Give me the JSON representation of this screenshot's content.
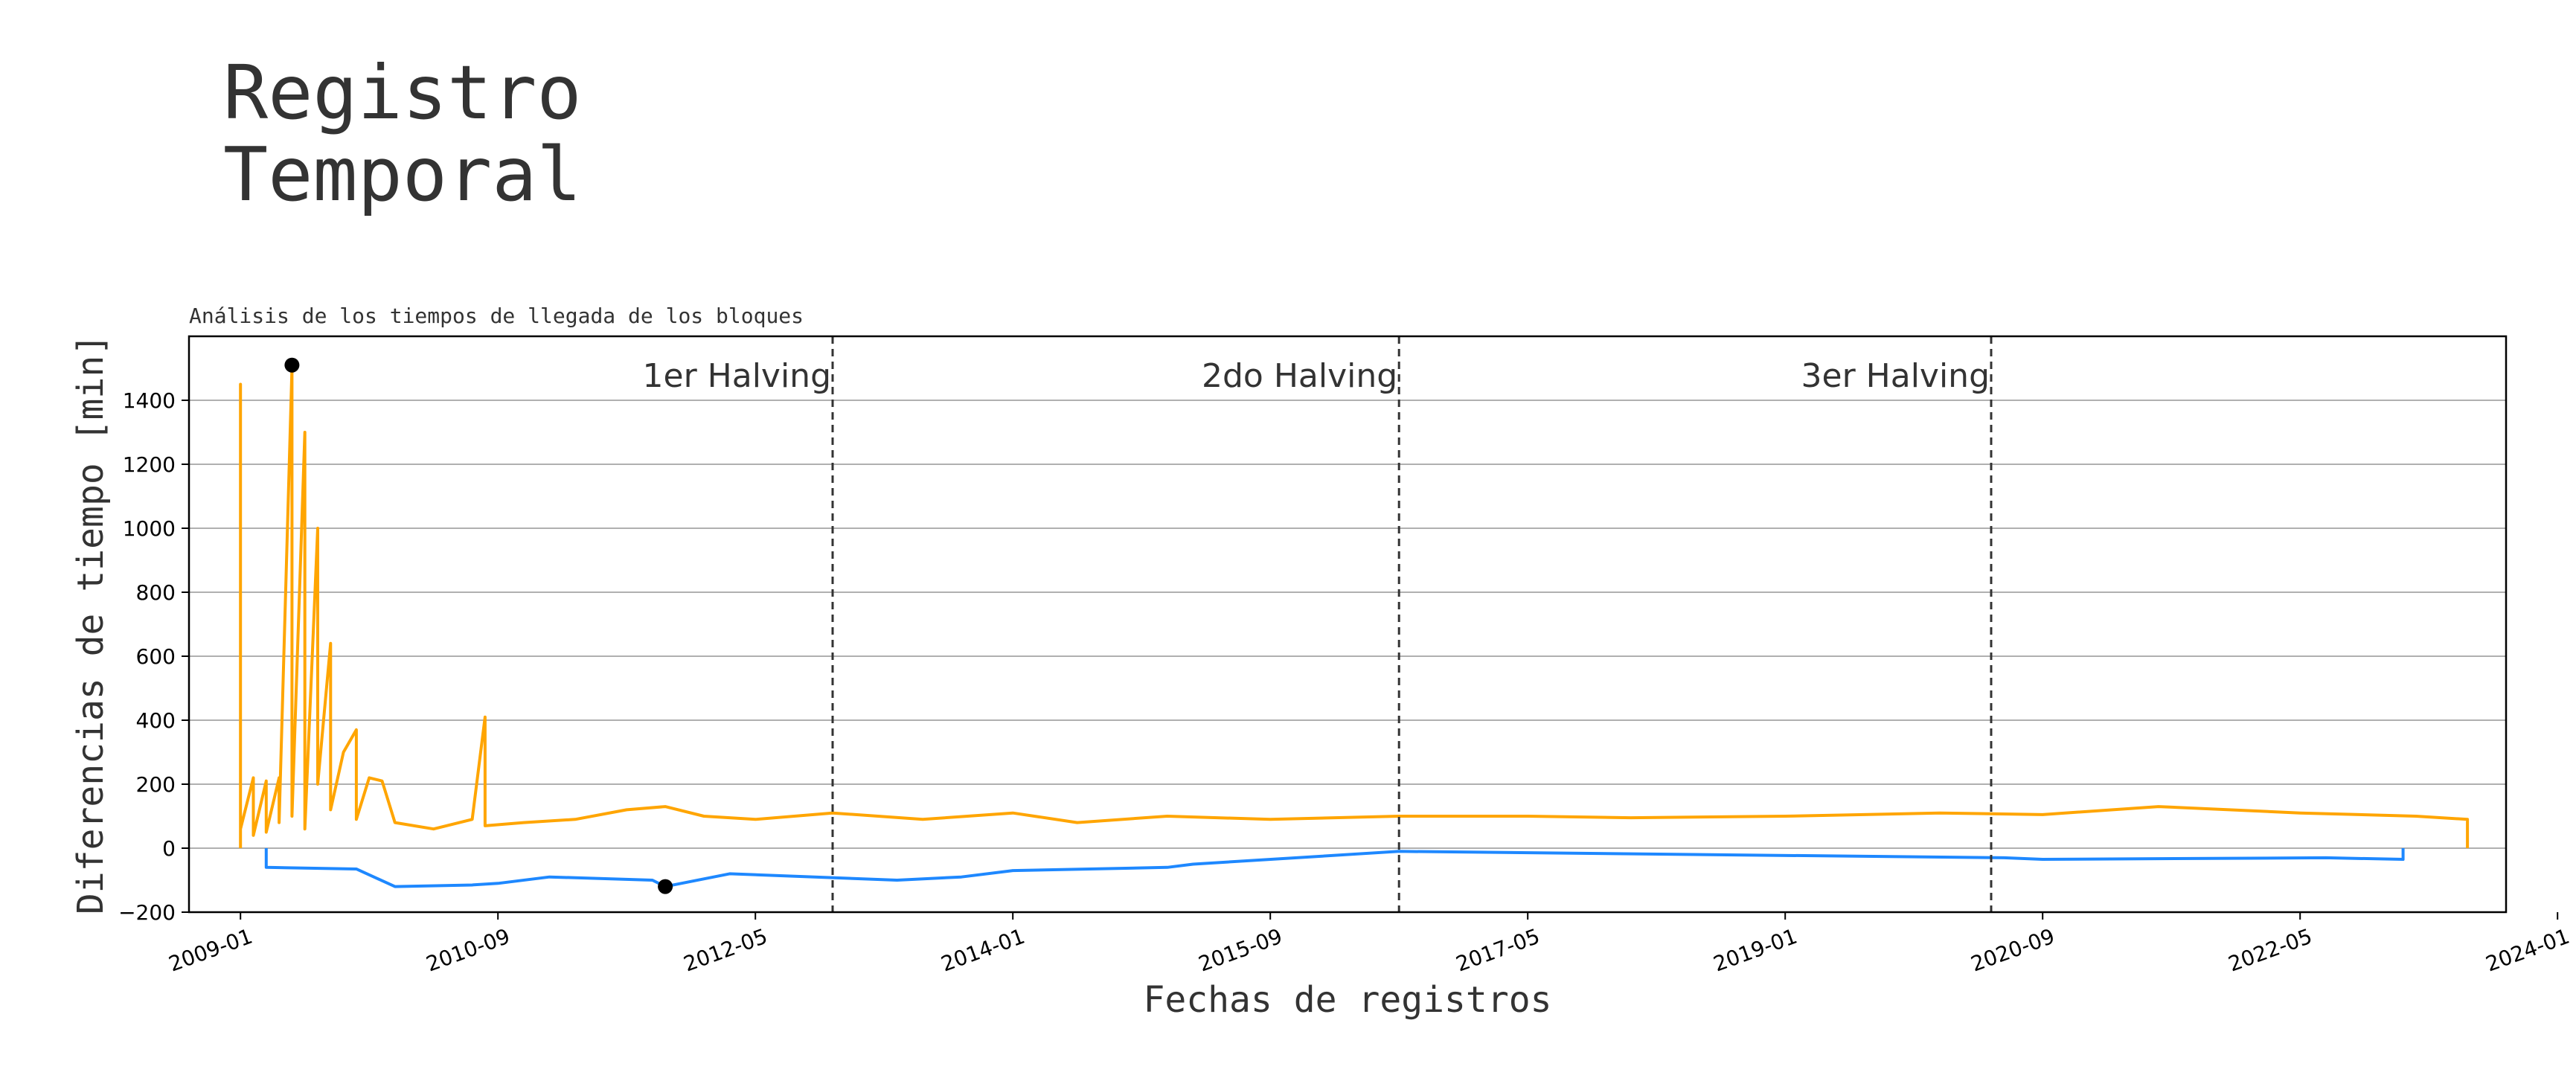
{
  "page": {
    "title_line1": "Registro",
    "title_line2": "Temporal"
  },
  "chart_data": {
    "type": "line",
    "subtitle": "Análisis de los tiempos de llegada de los bloques",
    "xlabel": "Fechas de registros",
    "ylabel": "Diferencias de tiempo [min]",
    "ylim": [
      -200,
      1600
    ],
    "xlim": [
      "2008-09",
      "2023-09"
    ],
    "grid": "horizontal",
    "y_ticks": [
      -200,
      0,
      200,
      400,
      600,
      800,
      1000,
      1200,
      1400
    ],
    "x_ticks": [
      "2009-01",
      "2010-09",
      "2012-05",
      "2014-01",
      "2015-09",
      "2017-05",
      "2019-01",
      "2020-09",
      "2022-05",
      "2024-01"
    ],
    "colors": {
      "positive": "#FFA500",
      "negative": "#1E88FF",
      "markers": "#000000",
      "halving_lines": "#333333"
    },
    "halvings": [
      {
        "label": "1er Halving",
        "date": "2012-11"
      },
      {
        "label": "2do Halving",
        "date": "2016-07"
      },
      {
        "label": "3er Halving",
        "date": "2020-05"
      }
    ],
    "extreme_points": [
      {
        "date": "2009-05",
        "value": 1510,
        "kind": "max"
      },
      {
        "date": "2011-10",
        "value": -120,
        "kind": "min"
      }
    ],
    "series": [
      {
        "kind": "positive",
        "points": [
          [
            "2009-01",
            0
          ],
          [
            "2009-01",
            1450
          ],
          [
            "2009-01",
            60
          ],
          [
            "2009-02",
            220
          ],
          [
            "2009-02",
            40
          ],
          [
            "2009-03",
            210
          ],
          [
            "2009-03",
            50
          ],
          [
            "2009-04",
            220
          ],
          [
            "2009-04",
            80
          ],
          [
            "2009-05",
            1500
          ],
          [
            "2009-05",
            100
          ],
          [
            "2009-06",
            1300
          ],
          [
            "2009-06",
            60
          ],
          [
            "2009-07",
            1000
          ],
          [
            "2009-07",
            200
          ],
          [
            "2009-08",
            640
          ],
          [
            "2009-08",
            120
          ],
          [
            "2009-09",
            300
          ],
          [
            "2009-10",
            370
          ],
          [
            "2009-10",
            90
          ],
          [
            "2009-11",
            220
          ],
          [
            "2009-12",
            210
          ],
          [
            "2010-01",
            80
          ],
          [
            "2010-04",
            60
          ],
          [
            "2010-07",
            90
          ],
          [
            "2010-08",
            410
          ],
          [
            "2010-08",
            70
          ],
          [
            "2010-11",
            80
          ],
          [
            "2011-03",
            90
          ],
          [
            "2011-07",
            120
          ],
          [
            "2011-10",
            130
          ],
          [
            "2012-01",
            100
          ],
          [
            "2012-05",
            90
          ],
          [
            "2012-11",
            110
          ],
          [
            "2013-06",
            90
          ],
          [
            "2014-01",
            110
          ],
          [
            "2014-06",
            80
          ],
          [
            "2015-01",
            100
          ],
          [
            "2015-09",
            90
          ],
          [
            "2016-07",
            100
          ],
          [
            "2017-05",
            100
          ],
          [
            "2018-01",
            95
          ],
          [
            "2019-01",
            100
          ],
          [
            "2020-01",
            110
          ],
          [
            "2020-09",
            105
          ],
          [
            "2021-06",
            130
          ],
          [
            "2022-05",
            110
          ],
          [
            "2023-02",
            100
          ],
          [
            "2023-06",
            90
          ]
        ]
      },
      {
        "kind": "negative",
        "points": [
          [
            "2009-03",
            -60
          ],
          [
            "2009-10",
            -65
          ],
          [
            "2010-01",
            -120
          ],
          [
            "2010-07",
            -115
          ],
          [
            "2010-09",
            -110
          ],
          [
            "2011-01",
            -90
          ],
          [
            "2011-09",
            -100
          ],
          [
            "2011-10",
            -120
          ],
          [
            "2012-03",
            -80
          ],
          [
            "2013-04",
            -100
          ],
          [
            "2013-09",
            -90
          ],
          [
            "2014-01",
            -70
          ],
          [
            "2015-01",
            -60
          ],
          [
            "2015-03",
            -50
          ],
          [
            "2016-07",
            -10
          ],
          [
            "2020-06",
            -30
          ],
          [
            "2020-09",
            -35
          ],
          [
            "2022-07",
            -30
          ],
          [
            "2023-01",
            -35
          ]
        ]
      }
    ]
  }
}
